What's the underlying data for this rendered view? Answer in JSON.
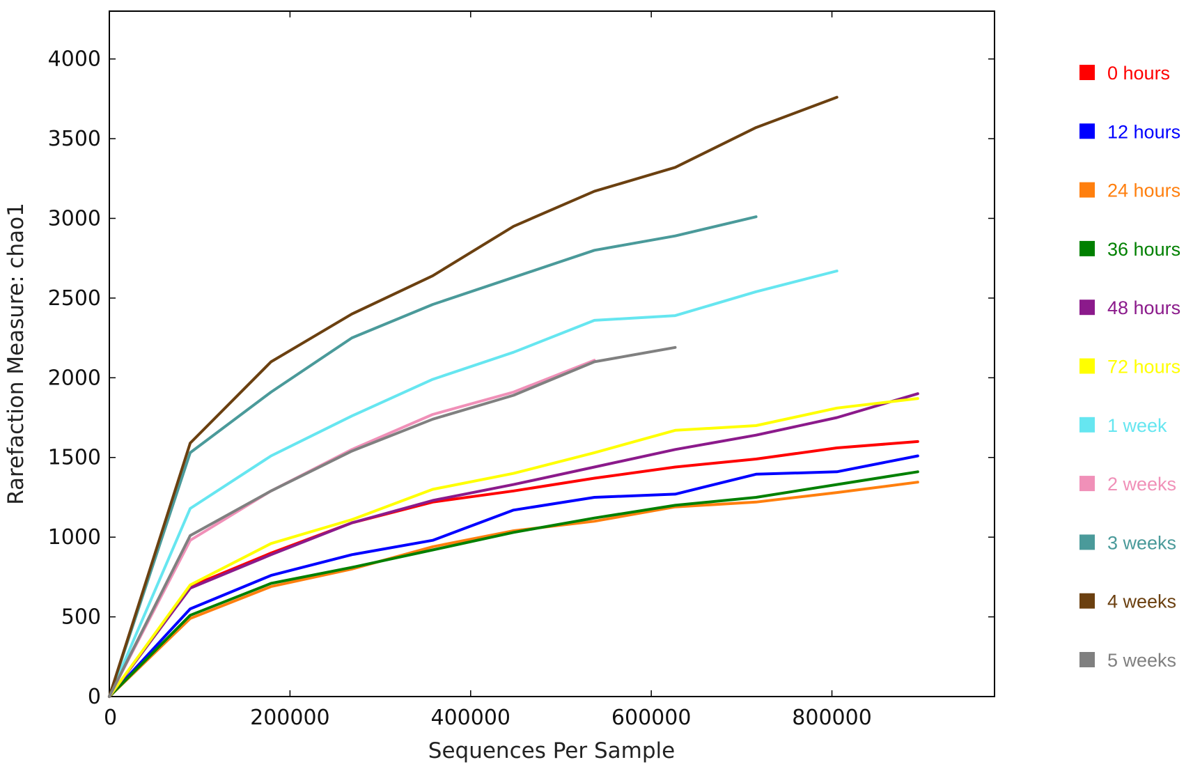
{
  "chart_data": {
    "type": "line",
    "title": "",
    "xlabel": "Sequences Per Sample",
    "ylabel": "Rarefaction Measure: chao1",
    "xlim": [
      0,
      980000
    ],
    "ylim": [
      0,
      4300
    ],
    "xticks": [
      0,
      200000,
      400000,
      600000,
      800000
    ],
    "yticks": [
      0,
      500,
      1000,
      1500,
      2000,
      2500,
      3000,
      3500,
      4000
    ],
    "xtick_labels": [
      "0",
      "200000",
      "400000",
      "600000",
      "800000"
    ],
    "ytick_labels": [
      "0",
      "500",
      "1000",
      "1500",
      "2000",
      "2500",
      "3000",
      "3500",
      "4000"
    ],
    "grid": false,
    "legend_position": "right, outside plot",
    "series": [
      {
        "name": "0 hours",
        "color": "#ff0000",
        "x": [
          0,
          89500,
          179000,
          268500,
          358000,
          447500,
          537000,
          626500,
          716000,
          805500,
          895000
        ],
        "y": [
          0,
          690,
          900,
          1090,
          1220,
          1290,
          1370,
          1440,
          1490,
          1560,
          1600
        ]
      },
      {
        "name": "12 hours",
        "color": "#0000ff",
        "x": [
          0,
          89500,
          179000,
          268500,
          358000,
          447500,
          537000,
          626500,
          716000,
          805500,
          895000
        ],
        "y": [
          0,
          550,
          760,
          890,
          980,
          1170,
          1250,
          1270,
          1395,
          1410,
          1510
        ]
      },
      {
        "name": "24 hours",
        "color": "#ff7f0e",
        "x": [
          0,
          89500,
          179000,
          268500,
          358000,
          447500,
          537000,
          626500,
          716000,
          805500,
          895000
        ],
        "y": [
          0,
          490,
          690,
          800,
          940,
          1040,
          1100,
          1190,
          1220,
          1280,
          1345
        ]
      },
      {
        "name": "36 hours",
        "color": "#008000",
        "x": [
          0,
          89500,
          179000,
          268500,
          358000,
          447500,
          537000,
          626500,
          716000,
          805500,
          895000
        ],
        "y": [
          0,
          510,
          710,
          810,
          920,
          1030,
          1120,
          1200,
          1250,
          1330,
          1410
        ]
      },
      {
        "name": "48 hours",
        "color": "#8b1a8b",
        "x": [
          0,
          89500,
          179000,
          268500,
          358000,
          447500,
          537000,
          626500,
          716000,
          805500,
          895000
        ],
        "y": [
          0,
          680,
          890,
          1090,
          1230,
          1330,
          1440,
          1550,
          1640,
          1750,
          1900
        ]
      },
      {
        "name": "72 hours",
        "color": "#ffff00",
        "x": [
          0,
          89500,
          179000,
          268500,
          358000,
          447500,
          537000,
          626500,
          716000,
          805500,
          895000
        ],
        "y": [
          0,
          700,
          960,
          1110,
          1300,
          1400,
          1530,
          1670,
          1700,
          1810,
          1870
        ]
      },
      {
        "name": "1 week",
        "color": "#66e6f0",
        "x": [
          0,
          89500,
          179000,
          268500,
          358000,
          447500,
          537000,
          626500,
          716000,
          805500
        ],
        "y": [
          0,
          1180,
          1510,
          1760,
          1990,
          2160,
          2360,
          2390,
          2540,
          2670
        ]
      },
      {
        "name": "2 weeks",
        "color": "#f090b8",
        "x": [
          0,
          89500,
          179000,
          268500,
          358000,
          447500,
          537000
        ],
        "y": [
          0,
          980,
          1290,
          1550,
          1770,
          1910,
          2110
        ]
      },
      {
        "name": "3 weeks",
        "color": "#4a9a9a",
        "x": [
          0,
          89500,
          179000,
          268500,
          358000,
          447500,
          537000,
          626500,
          716000
        ],
        "y": [
          0,
          1530,
          1910,
          2250,
          2460,
          2630,
          2800,
          2890,
          3010
        ]
      },
      {
        "name": "4 weeks",
        "color": "#6b4010",
        "x": [
          0,
          89500,
          179000,
          268500,
          358000,
          447500,
          537000,
          626500,
          716000,
          805500
        ],
        "y": [
          0,
          1590,
          2100,
          2400,
          2640,
          2950,
          3170,
          3320,
          3570,
          3760
        ]
      },
      {
        "name": "5 weeks",
        "color": "#808080",
        "x": [
          0,
          89500,
          179000,
          268500,
          358000,
          447500,
          537000,
          626500
        ],
        "y": [
          0,
          1010,
          1290,
          1540,
          1740,
          1890,
          2100,
          2190
        ]
      }
    ]
  }
}
